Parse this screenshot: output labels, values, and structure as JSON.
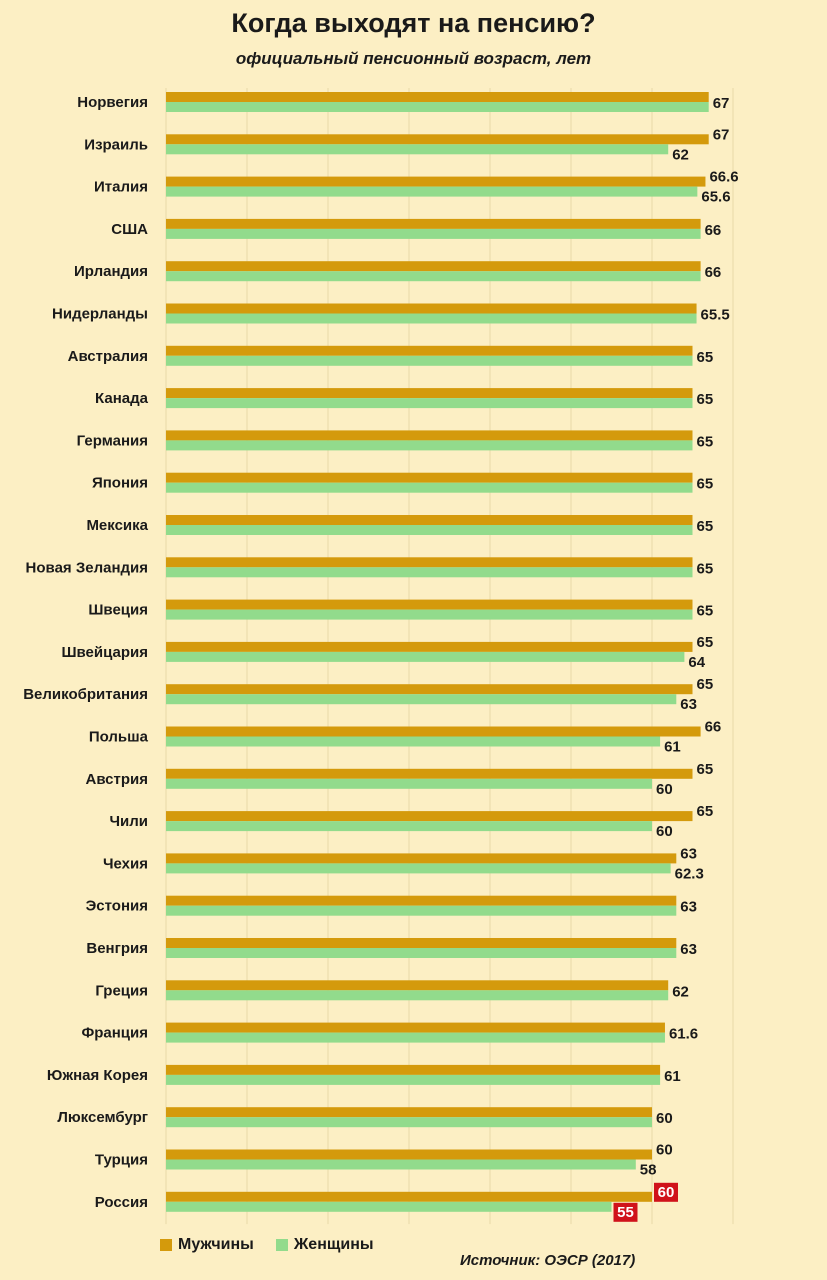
{
  "colors": {
    "men": "#d49a0c",
    "women": "#92db8c",
    "highlight": "#d0121a",
    "background": "#fcefc4",
    "grid": "#e8d9a8"
  },
  "chart_data": {
    "type": "bar",
    "orientation": "horizontal",
    "title": "Когда выходят на пенсию?",
    "subtitle": "официальный пенсионный возраст, лет",
    "xlim": [
      0,
      67
    ],
    "grid": true,
    "legend_position": "bottom-left",
    "categories": [
      "Норвегия",
      "Израиль",
      "Италия",
      "США",
      "Ирландия",
      "Нидерланды",
      "Австралия",
      "Канада",
      "Германия",
      "Япония",
      "Мексика",
      "Новая Зеландия",
      "Швеция",
      "Швейцария",
      "Великобритания",
      "Польша",
      "Австрия",
      "Чили",
      "Чехия",
      "Эстония",
      "Венгрия",
      "Греция",
      "Франция",
      "Южная Корея",
      "Люксембург",
      "Турция",
      "Россия"
    ],
    "series": [
      {
        "name": "Мужчины",
        "values": [
          67,
          67,
          66.6,
          66,
          66,
          65.5,
          65,
          65,
          65,
          65,
          65,
          65,
          65,
          65,
          65,
          66,
          65,
          65,
          63,
          63,
          63,
          62,
          61.6,
          61,
          60,
          60,
          60
        ]
      },
      {
        "name": "Женщины",
        "values": [
          67,
          62,
          65.6,
          66,
          66,
          65.5,
          65,
          65,
          65,
          65,
          65,
          65,
          65,
          64,
          63,
          61,
          60,
          60,
          62.3,
          63,
          63,
          62,
          61.6,
          61,
          60,
          58,
          55
        ]
      }
    ],
    "labels": [
      [
        "67"
      ],
      [
        "67",
        "62"
      ],
      [
        "66.6",
        "65.6"
      ],
      [
        "66"
      ],
      [
        "66"
      ],
      [
        "65.5"
      ],
      [
        "65"
      ],
      [
        "65"
      ],
      [
        "65"
      ],
      [
        "65"
      ],
      [
        "65"
      ],
      [
        "65"
      ],
      [
        "65"
      ],
      [
        "65",
        "64"
      ],
      [
        "65",
        "63"
      ],
      [
        "66",
        "61"
      ],
      [
        "65",
        "60"
      ],
      [
        "65",
        "60"
      ],
      [
        "63",
        "62.3"
      ],
      [
        "63"
      ],
      [
        "63"
      ],
      [
        "62"
      ],
      [
        "61.6"
      ],
      [
        "61"
      ],
      [
        "60"
      ],
      [
        "60",
        "58"
      ],
      [
        "60",
        "55"
      ]
    ],
    "highlight_category": "Россия"
  },
  "legend": {
    "men": "Мужчины",
    "women": "Женщины"
  },
  "source": "Источник: ОЭСР (2017)"
}
